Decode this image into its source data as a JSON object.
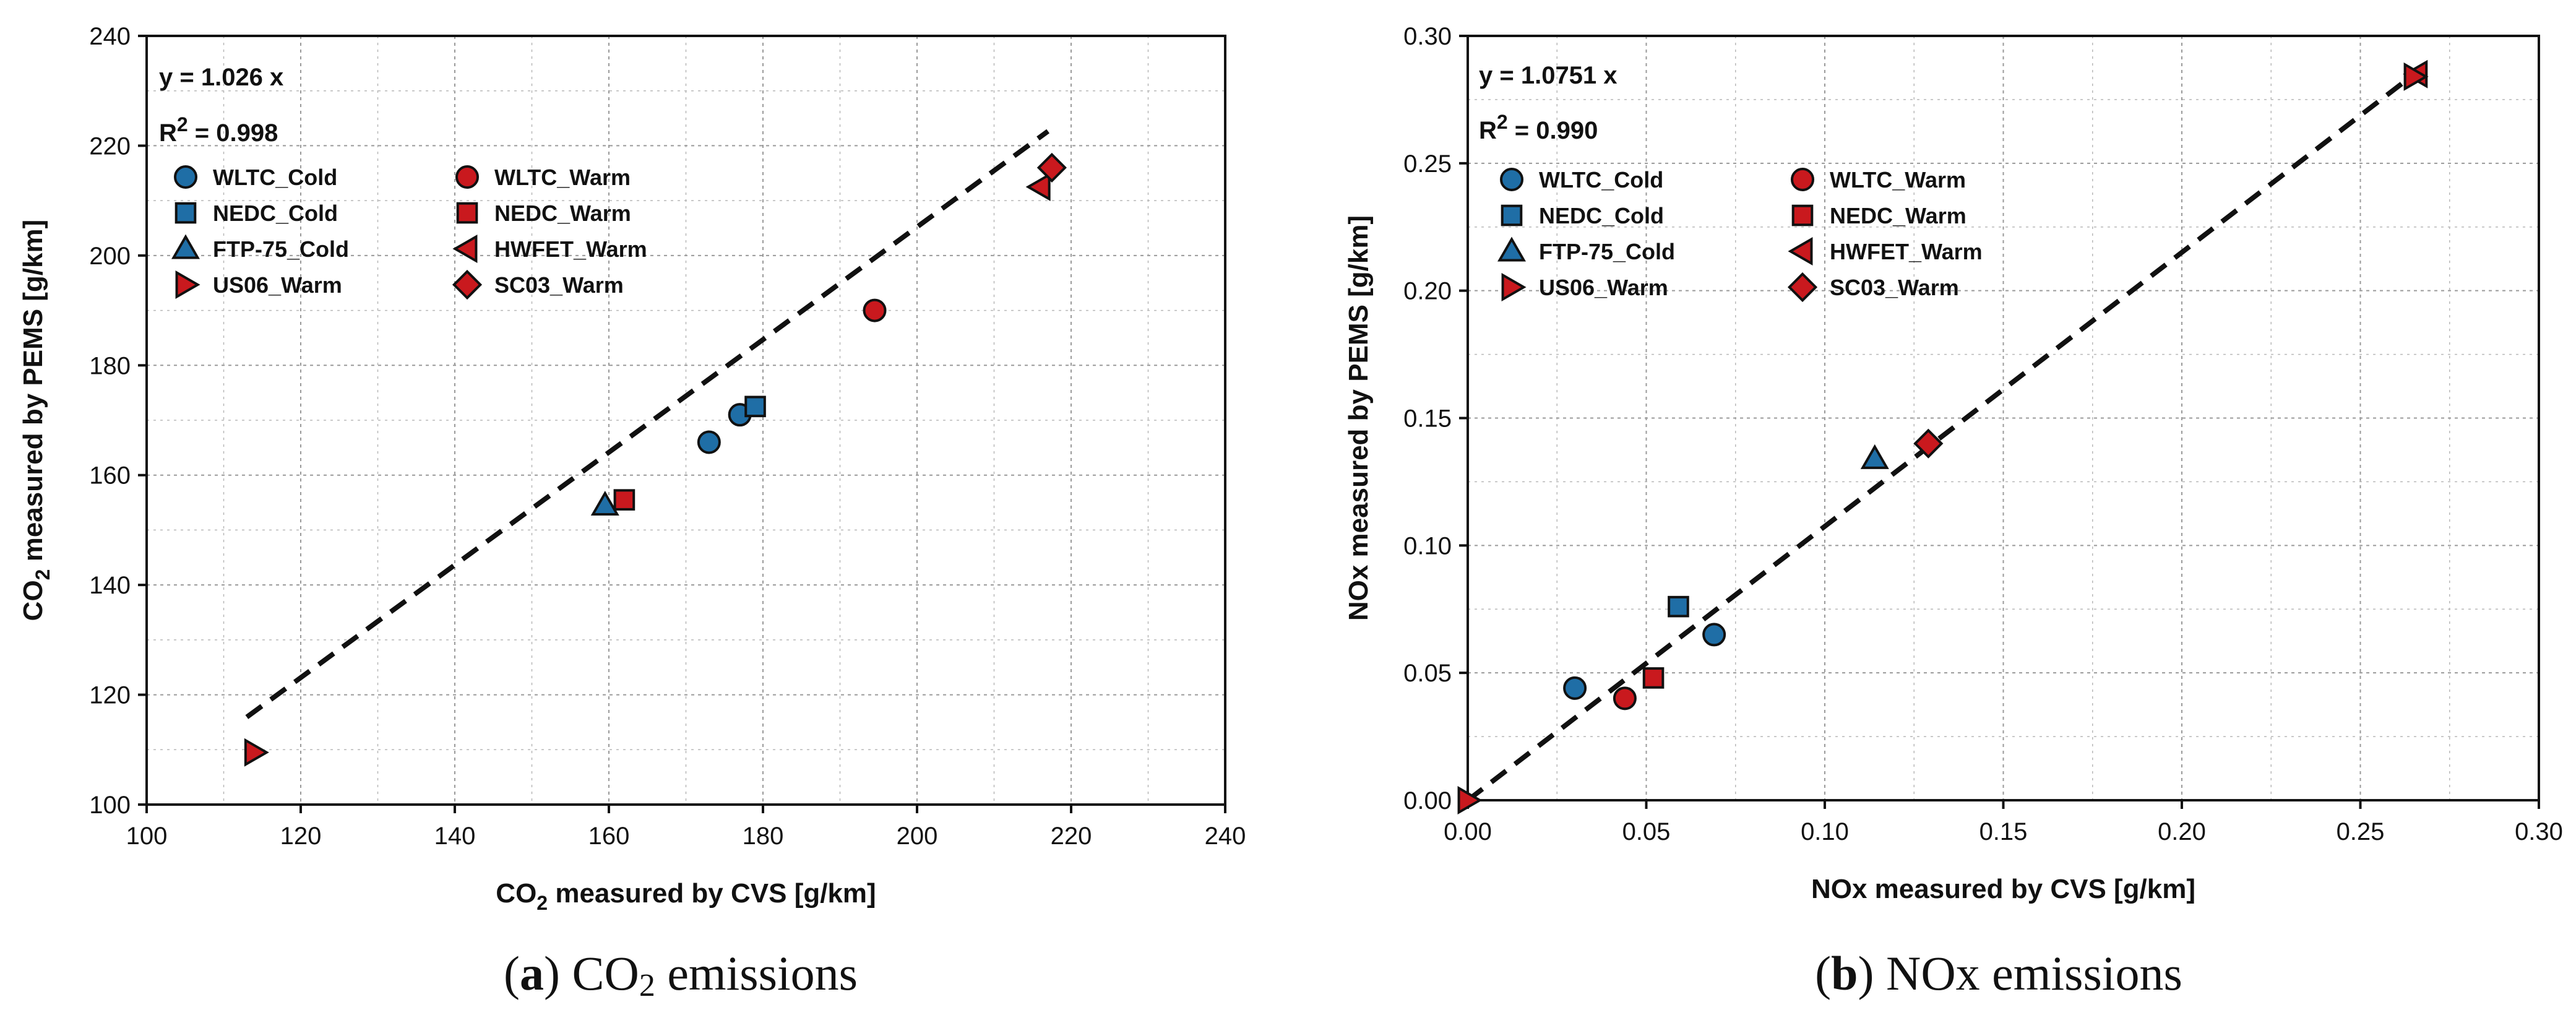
{
  "chart_data": [
    {
      "type": "scatter",
      "xlabel_prefix": "CO",
      "xlabel_sub": "2",
      "xlabel_rest": " measured by CVS [g/km]",
      "ylabel_prefix": "CO",
      "ylabel_sub": "2",
      "ylabel_rest": " measured by PEMS [g/km]",
      "xlim": [
        100,
        240
      ],
      "ylim": [
        100,
        240
      ],
      "xticks": [
        100,
        120,
        140,
        160,
        180,
        200,
        220,
        240
      ],
      "yticks": [
        100,
        120,
        140,
        160,
        180,
        200,
        220,
        240
      ],
      "xtick_labels": [
        "100",
        "120",
        "140",
        "160",
        "180",
        "200",
        "220",
        "240"
      ],
      "ytick_labels": [
        "100",
        "120",
        "140",
        "160",
        "180",
        "200",
        "220",
        "240"
      ],
      "grid": true,
      "fit": {
        "equation": "y = 1.026 x",
        "r2_label": "R",
        "r2_sup": "2",
        "r2_value": " = 0.998",
        "slope": 1.026,
        "x_range": [
          113,
          217
        ]
      },
      "legend_position": "top-left",
      "series": [
        {
          "name": "WLTC_Cold",
          "marker": "circle",
          "color": "#1f6ea6",
          "points": [
            [
              173,
              166
            ],
            [
              177,
              171
            ]
          ]
        },
        {
          "name": "WLTC_Warm",
          "marker": "circle",
          "color": "#c9191e",
          "points": [
            [
              194.5,
              190
            ]
          ]
        },
        {
          "name": "NEDC_Cold",
          "marker": "square",
          "color": "#1f6ea6",
          "points": [
            [
              179,
              172.5
            ]
          ]
        },
        {
          "name": "NEDC_Warm",
          "marker": "square",
          "color": "#c9191e",
          "points": [
            [
              162,
              155.5
            ]
          ]
        },
        {
          "name": "FTP-75_Cold",
          "marker": "triangle-up",
          "color": "#1f6ea6",
          "points": [
            [
              159.5,
              154.5
            ]
          ]
        },
        {
          "name": "HWFET_Warm",
          "marker": "triangle-left",
          "color": "#c9191e",
          "points": [
            [
              216,
              212.5
            ]
          ]
        },
        {
          "name": "US06_Warm",
          "marker": "triangle-right",
          "color": "#c9191e",
          "points": [
            [
              114,
              109.5
            ]
          ]
        },
        {
          "name": "SC03_Warm",
          "marker": "diamond",
          "color": "#c9191e",
          "points": [
            [
              217.5,
              216
            ]
          ]
        }
      ]
    },
    {
      "type": "scatter",
      "xlabel_prefix": "NOx measured by CVS [g/km]",
      "xlabel_sub": "",
      "xlabel_rest": "",
      "ylabel_prefix": "NOx measured by PEMS [g/km]",
      "ylabel_sub": "",
      "ylabel_rest": "",
      "xlim": [
        0,
        0.3
      ],
      "ylim": [
        0,
        0.3
      ],
      "xticks": [
        0,
        0.05,
        0.1,
        0.15,
        0.2,
        0.25,
        0.3
      ],
      "yticks": [
        0,
        0.05,
        0.1,
        0.15,
        0.2,
        0.25,
        0.3
      ],
      "xtick_labels": [
        "0.00",
        "0.05",
        "0.10",
        "0.15",
        "0.20",
        "0.25",
        "0.30"
      ],
      "ytick_labels": [
        "0.00",
        "0.05",
        "0.10",
        "0.15",
        "0.20",
        "0.25",
        "0.30"
      ],
      "grid": true,
      "fit": {
        "equation": "y = 1.0751 x",
        "r2_label": "R",
        "r2_sup": "2",
        "r2_value": " = 0.990",
        "slope": 1.0751,
        "x_range": [
          0,
          0.266
        ]
      },
      "legend_position": "top-left",
      "series": [
        {
          "name": "WLTC_Cold",
          "marker": "circle",
          "color": "#1f6ea6",
          "points": [
            [
              0.03,
              0.044
            ],
            [
              0.069,
              0.065
            ]
          ]
        },
        {
          "name": "WLTC_Warm",
          "marker": "circle",
          "color": "#c9191e",
          "points": [
            [
              0.044,
              0.04
            ]
          ]
        },
        {
          "name": "NEDC_Cold",
          "marker": "square",
          "color": "#1f6ea6",
          "points": [
            [
              0.059,
              0.076
            ]
          ]
        },
        {
          "name": "NEDC_Warm",
          "marker": "square",
          "color": "#c9191e",
          "points": [
            [
              0.052,
              0.048
            ]
          ]
        },
        {
          "name": "FTP-75_Cold",
          "marker": "triangle-up",
          "color": "#1f6ea6",
          "points": [
            [
              0.114,
              0.134
            ]
          ]
        },
        {
          "name": "HWFET_Warm",
          "marker": "triangle-left",
          "color": "#c9191e",
          "points": [
            [
              0.266,
              0.285
            ]
          ]
        },
        {
          "name": "US06_Warm",
          "marker": "triangle-right",
          "color": "#c9191e",
          "points": [
            [
              0.0,
              0.0
            ],
            [
              0.265,
              0.284
            ]
          ]
        },
        {
          "name": "SC03_Warm",
          "marker": "diamond",
          "color": "#c9191e",
          "points": [
            [
              0.129,
              0.14
            ]
          ]
        }
      ]
    }
  ],
  "captions": [
    {
      "letter": "a",
      "text_before": " CO",
      "text_sub": "2",
      "text_after": " emissions"
    },
    {
      "letter": "b",
      "text_before": " NOx emissions",
      "text_sub": "",
      "text_after": ""
    }
  ]
}
